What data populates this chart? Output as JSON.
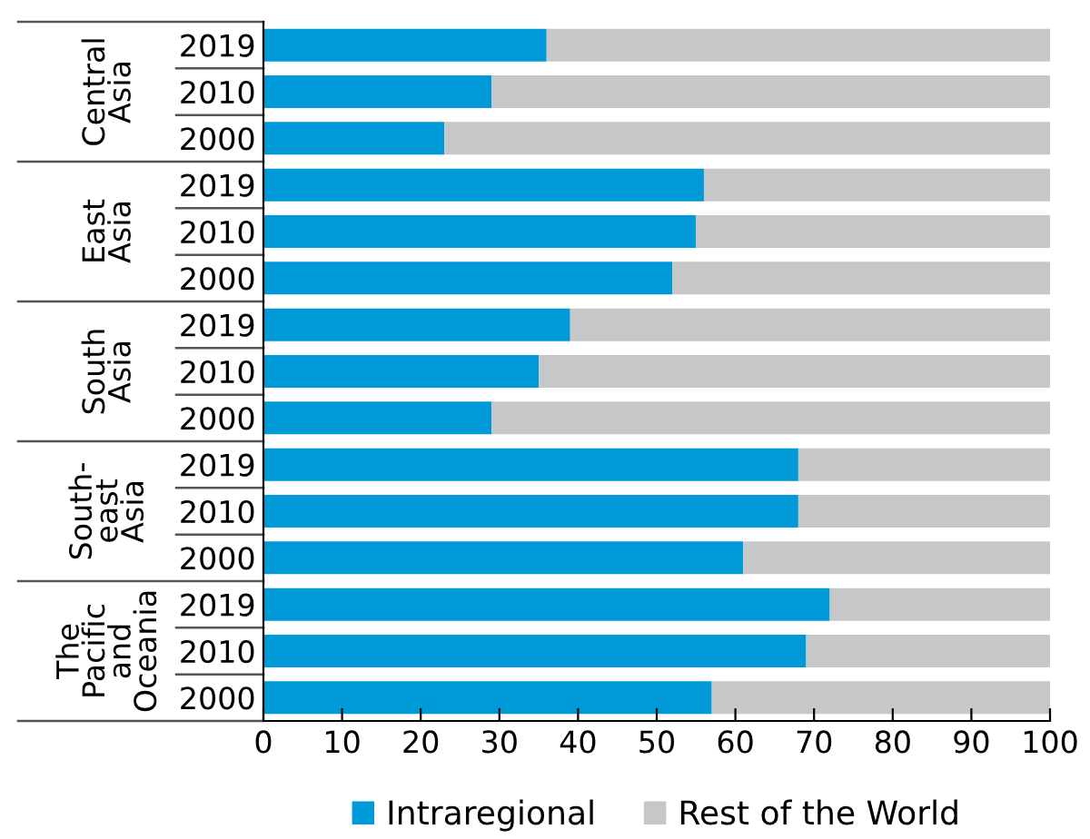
{
  "chart_data": {
    "type": "bar",
    "orientation": "horizontal",
    "stacked": true,
    "categories": [
      "2019",
      "2010",
      "2000",
      "2019",
      "2010",
      "2000",
      "2019",
      "2010",
      "2000",
      "2019",
      "2010",
      "2000",
      "2019",
      "2010",
      "2000"
    ],
    "series": [
      {
        "name": "Intraregional",
        "color": "#009ad8",
        "values": [
          36,
          29,
          23,
          56,
          55,
          52,
          39,
          35,
          29,
          68,
          68,
          61,
          72,
          69,
          57
        ]
      },
      {
        "name": "Rest of the World",
        "color": "#c6c7c9",
        "values": [
          64,
          71,
          77,
          44,
          45,
          48,
          61,
          65,
          71,
          32,
          32,
          39,
          28,
          31,
          43
        ]
      }
    ],
    "annotations": [
      "Central\nAsia",
      "East\nAsia",
      "South\nAsia",
      "South-\neast\nAsia",
      "The\nPacific\nand\nOceania"
    ],
    "xlim": [
      0,
      100
    ],
    "xticks": [
      0,
      10,
      20,
      30,
      40,
      50,
      60,
      70,
      80,
      90,
      100
    ],
    "grid": false,
    "legend": "bottom"
  }
}
